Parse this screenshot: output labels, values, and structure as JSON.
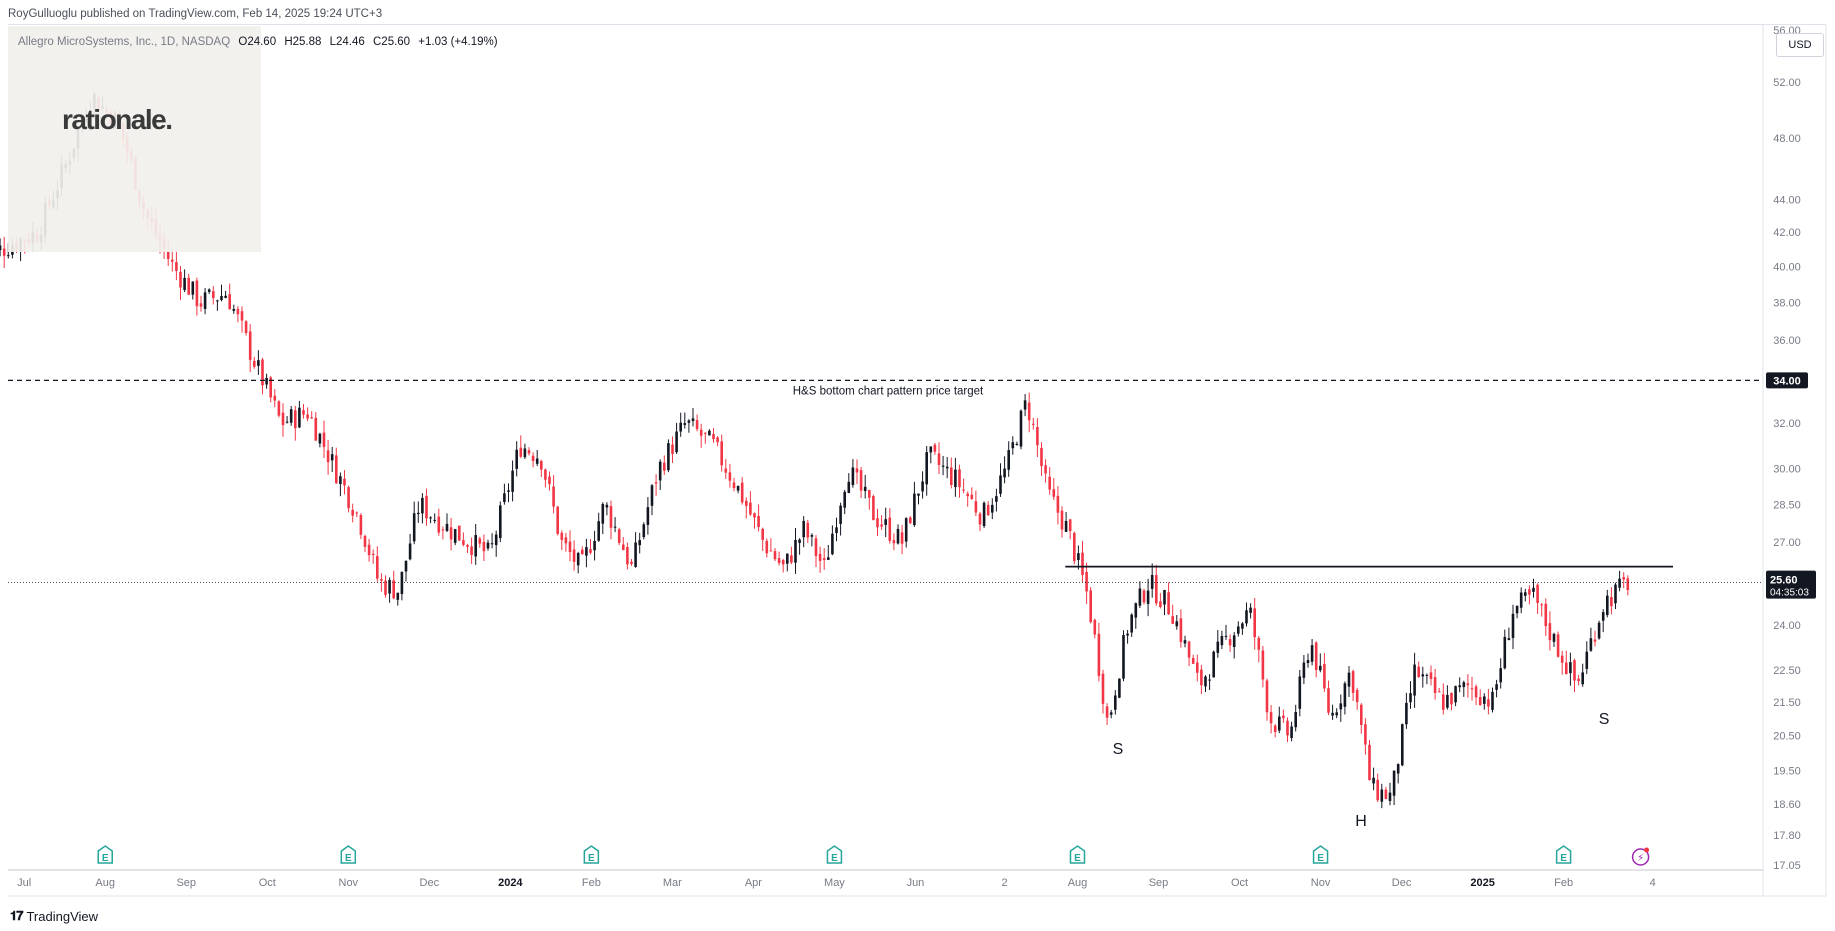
{
  "header": {
    "published": "RoyGulluoglu published on TradingView.com, Feb 14, 2025 19:24 UTC+3"
  },
  "symbol": {
    "name": "Allegro MicroSystems, Inc., 1D, NASDAQ",
    "open": "O24.60",
    "high": "H25.88",
    "low": "L24.46",
    "close": "C25.60",
    "change": "+1.03 (+4.19%)"
  },
  "watermark": {
    "logo_text": "rationale."
  },
  "currency": "USD",
  "footer": {
    "brand": "TradingView"
  },
  "colors": {
    "up": "#131722",
    "down": "#f23645",
    "grid_axis": "#787b86",
    "price_tag_bg": "#131722",
    "line": "#131722",
    "earnings_icon": "#26a69a",
    "replay_icon": "#9c27b0"
  },
  "chart_data": {
    "type": "candlestick",
    "title": "Allegro MicroSystems, Inc., 1D, NASDAQ",
    "y_scale": "log",
    "ylim": [
      17.05,
      56.0
    ],
    "y_ticks": [
      "56.00",
      "52.00",
      "48.00",
      "44.00",
      "42.00",
      "40.00",
      "38.00",
      "36.00",
      "34.00",
      "32.00",
      "30.00",
      "28.50",
      "27.00",
      "25.60",
      "24.00",
      "22.50",
      "21.50",
      "20.50",
      "19.50",
      "18.60",
      "17.80",
      "17.05"
    ],
    "x_ticks": [
      "Jul",
      "Aug",
      "Sep",
      "Oct",
      "Nov",
      "Dec",
      "2024",
      "Feb",
      "Mar",
      "Apr",
      "May",
      "Jun",
      "2",
      "Aug",
      "Sep",
      "Oct",
      "Nov",
      "Dec",
      "2025",
      "Feb",
      "4"
    ],
    "bold_x_ticks": [
      "2024",
      "2025"
    ],
    "last_price": "25.60",
    "countdown": "04:35:03",
    "target_line": {
      "price": 34.0,
      "label": "34.00",
      "annotation": "H&S bottom chart pattern price target"
    },
    "neckline": {
      "price": 25.6
    },
    "pattern_labels": [
      {
        "text": "S",
        "x": "Aug 2024",
        "price": 20.6
      },
      {
        "text": "H",
        "x": "Nov 2024",
        "price": 18.6
      },
      {
        "text": "S",
        "x": "Feb 2025",
        "price": 21.5
      }
    ],
    "anchors": [
      [
        "Jun 2023",
        40.5
      ],
      [
        "Jul 2023",
        42.0
      ],
      [
        "Jul 2023",
        46.0
      ],
      [
        "Jul 2023",
        51.0
      ],
      [
        "Aug 2023",
        49.0
      ],
      [
        "Aug 2023",
        43.0
      ],
      [
        "Aug 2023",
        40.0
      ],
      [
        "Sep 2023",
        38.0
      ],
      [
        "Sep 2023",
        38.5
      ],
      [
        "Sep 2023",
        35.0
      ],
      [
        "Oct 2023",
        32.0
      ],
      [
        "Oct 2023",
        32.5
      ],
      [
        "Oct 2023",
        30.0
      ],
      [
        "Nov 2023",
        28.0
      ],
      [
        "Nov 2023",
        25.5
      ],
      [
        "Nov 2023",
        25.2
      ],
      [
        "Nov 2023",
        28.5
      ],
      [
        "Dec 2023",
        27.5
      ],
      [
        "Dec 2023",
        26.5
      ],
      [
        "Jan 2024",
        31.0
      ],
      [
        "Jan 2024",
        30.5
      ],
      [
        "Jan 2024",
        27.0
      ],
      [
        "Jan 2024",
        26.0
      ],
      [
        "Feb 2024",
        28.5
      ],
      [
        "Feb 2024",
        26.0
      ],
      [
        "Feb 2024",
        30.0
      ],
      [
        "Mar 2024",
        32.0
      ],
      [
        "Mar 2024",
        31.0
      ],
      [
        "Mar 2024",
        29.0
      ],
      [
        "Apr 2024",
        27.0
      ],
      [
        "Apr 2024",
        26.0
      ],
      [
        "Apr 2024",
        27.5
      ],
      [
        "Apr 2024",
        26.0
      ],
      [
        "May 2024",
        30.0
      ],
      [
        "May 2024",
        28.0
      ],
      [
        "May 2024",
        27.0
      ],
      [
        "Jun 2024",
        30.5
      ],
      [
        "Jun 2024",
        29.5
      ],
      [
        "Jun 2024",
        28.0
      ],
      [
        "Jul 2024",
        30.0
      ],
      [
        "Jul 2024",
        33.0
      ],
      [
        "Jul 2024",
        29.0
      ],
      [
        "Jul 2024",
        27.5
      ],
      [
        "Aug 2024",
        25.0
      ],
      [
        "Aug 2024",
        20.8
      ],
      [
        "Aug 2024",
        24.0
      ],
      [
        "Aug 2024",
        25.5
      ],
      [
        "Sep 2024",
        24.5
      ],
      [
        "Sep 2024",
        22.0
      ],
      [
        "Sep 2024",
        23.5
      ],
      [
        "Oct 2024",
        24.5
      ],
      [
        "Oct 2024",
        21.0
      ],
      [
        "Oct 2024",
        20.5
      ],
      [
        "Oct 2024",
        23.5
      ],
      [
        "Nov 2024",
        21.0
      ],
      [
        "Nov 2024",
        22.5
      ],
      [
        "Nov 2024",
        19.0
      ],
      [
        "Nov 2024",
        18.8
      ],
      [
        "Dec 2024",
        22.5
      ],
      [
        "Dec 2024",
        21.5
      ],
      [
        "Dec 2024",
        22.0
      ],
      [
        "Jan 2025",
        21.5
      ],
      [
        "Jan 2025",
        24.5
      ],
      [
        "Jan 2025",
        25.0
      ],
      [
        "Jan 2025",
        23.5
      ],
      [
        "Feb 2025",
        22.0
      ],
      [
        "Feb 2025",
        24.8
      ],
      [
        "Feb 2025",
        25.6
      ]
    ]
  }
}
